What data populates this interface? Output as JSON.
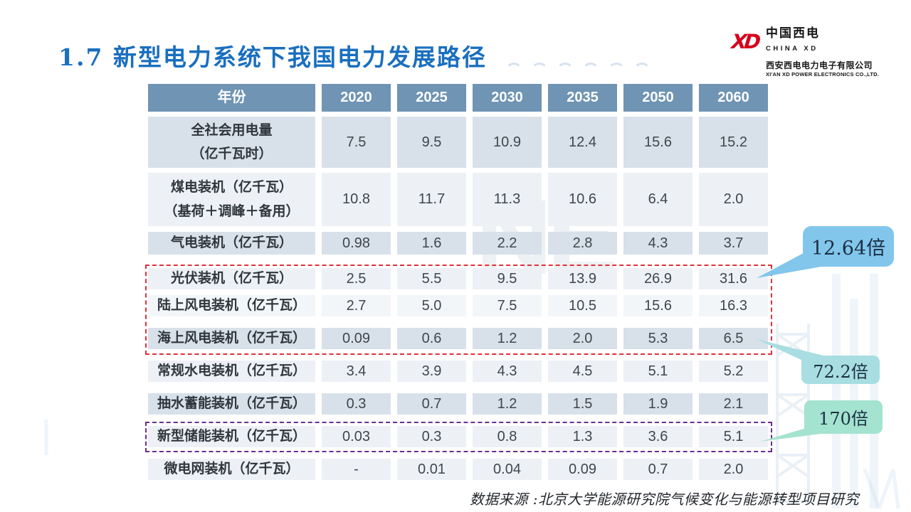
{
  "slide": {
    "title": "1.7 新型电力系统下我国电力发展路径",
    "source_note": "数据来源 :北京大学能源研究院气候变化与能源转型项目研究",
    "watermark": "NE"
  },
  "logo": {
    "mark": "XD",
    "brand_cn": "中国西电",
    "brand_en": "CHINA XD",
    "company_cn": "西安西电电力电子有限公司",
    "company_en": "XI'AN XD POWER ELECTRONICS CO.,LTD."
  },
  "chart_data": {
    "type": "table",
    "columns": [
      "年份",
      "2020",
      "2025",
      "2030",
      "2035",
      "2050",
      "2060"
    ],
    "rows": [
      {
        "label_lines": [
          "全社会用电量",
          "（亿千瓦时）"
        ],
        "values": [
          "7.5",
          "9.5",
          "10.9",
          "12.4",
          "15.6",
          "15.2"
        ]
      },
      {
        "label_lines": [
          "煤电装机（亿千瓦）",
          "（基荷＋调峰＋备用）"
        ],
        "values": [
          "10.8",
          "11.7",
          "11.3",
          "10.6",
          "6.4",
          "2.0"
        ]
      },
      {
        "label_lines": [
          "气电装机（亿千瓦）"
        ],
        "values": [
          "0.98",
          "1.6",
          "2.2",
          "2.8",
          "4.3",
          "3.7"
        ]
      },
      {
        "label_lines": [
          "光伏装机（亿千瓦）"
        ],
        "values": [
          "2.5",
          "5.5",
          "9.5",
          "13.9",
          "26.9",
          "31.6"
        ]
      },
      {
        "label_lines": [
          "陆上风电装机（亿千瓦）"
        ],
        "values": [
          "2.7",
          "5.0",
          "7.5",
          "10.5",
          "15.6",
          "16.3"
        ]
      },
      {
        "label_lines": [
          "海上风电装机（亿千瓦）"
        ],
        "values": [
          "0.09",
          "0.6",
          "1.2",
          "2.0",
          "5.3",
          "6.5"
        ]
      },
      {
        "label_lines": [
          "常规水电装机（亿千瓦）"
        ],
        "values": [
          "3.4",
          "3.9",
          "4.3",
          "4.5",
          "5.1",
          "5.2"
        ]
      },
      {
        "label_lines": [
          "抽水蓄能装机（亿千瓦）"
        ],
        "values": [
          "0.3",
          "0.7",
          "1.2",
          "1.5",
          "1.9",
          "2.1"
        ]
      },
      {
        "label_lines": [
          "新型储能装机（亿千瓦）"
        ],
        "values": [
          "0.03",
          "0.3",
          "0.8",
          "1.3",
          "3.6",
          "5.1"
        ]
      },
      {
        "label_lines": [
          "微电网装机（亿千瓦）"
        ],
        "values": [
          "-",
          "0.01",
          "0.04",
          "0.09",
          "0.7",
          "2.0"
        ]
      }
    ]
  },
  "highlights": [
    {
      "style": "red-dashed",
      "rows": [
        "光伏装机（亿千瓦）",
        "陆上风电装机（亿千瓦）",
        "海上风电装机（亿千瓦）"
      ]
    },
    {
      "style": "purple-dashed",
      "rows": [
        "新型储能装机（亿千瓦）"
      ]
    }
  ],
  "callouts": [
    {
      "label": "12.64倍",
      "color": "#82c6ec",
      "points_to": "光伏装机 2060: 31.6"
    },
    {
      "label": "72.2倍",
      "color": "#a8dee2",
      "points_to": "海上风电装机 2060: 6.5"
    },
    {
      "label": "170倍",
      "color": "#a4e3cf",
      "points_to": "新型储能装机 2060: 5.1"
    }
  ],
  "colors": {
    "title": "#1a6fbe",
    "logo_red": "#d6001c",
    "header_bg": "#6f94b4",
    "row_dark": "#d8e1ea",
    "row_light": "#edf1f6",
    "red_dashed": "#e0303a",
    "purple_dashed": "#6a2d91",
    "callout_text": "#1c2f45"
  }
}
